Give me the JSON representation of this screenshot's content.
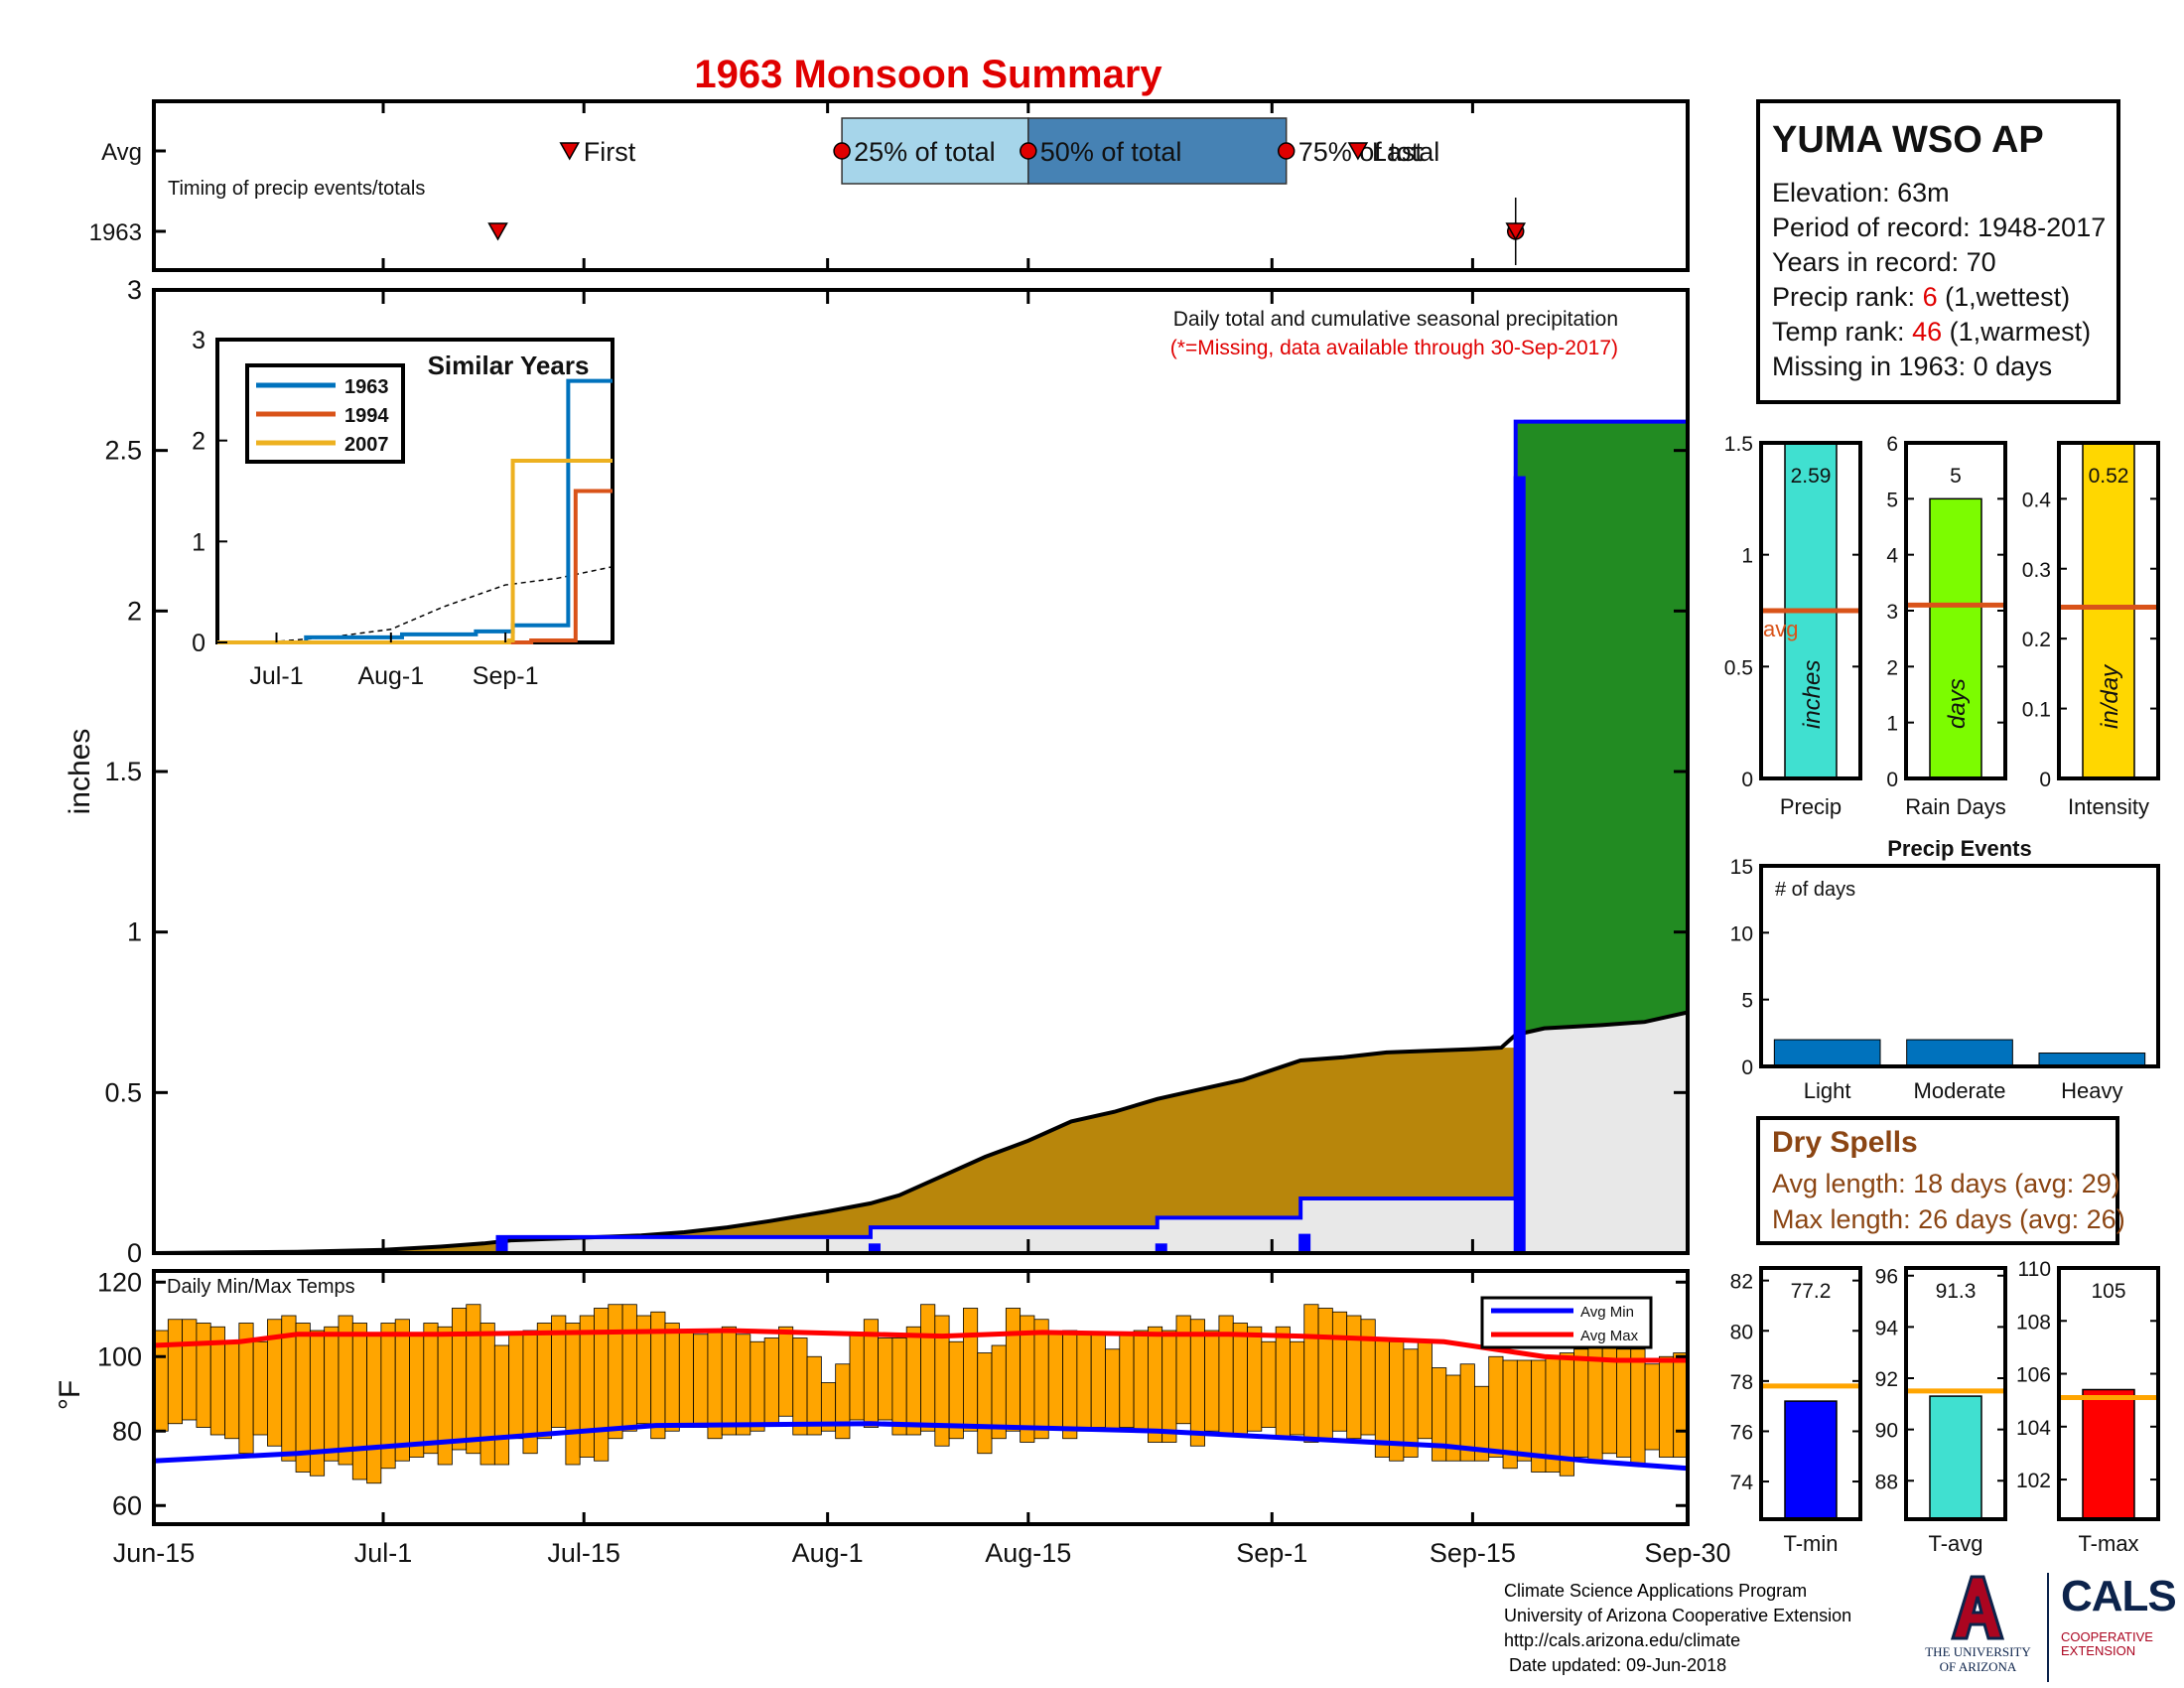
{
  "title": "1963 Monsoon Summary",
  "colors": {
    "title": "#e00000",
    "q_light": "#a6d5ea",
    "q_dark": "#4682b4",
    "marker": "#e00000",
    "precip_fill": "#b8860b",
    "avg_fill": "#e8e8e8",
    "above_fill": "#228b22",
    "cum_line": "#0000ff",
    "temp_bar": "#ffa500",
    "avg_min": "#0000ff",
    "avg_max": "#ff0000",
    "precip_bar": "#40e0d0",
    "raindays_bar": "#7cfc00",
    "intensity_bar": "#ffd700",
    "avg_line": "#d95319",
    "events_bar": "#0072bd",
    "tmin_bar": "#0000ff",
    "tavg_bar": "#40e0d0",
    "tmax_bar": "#ff0000",
    "temp_avg_line": "#ffa500",
    "similar_1963": "#0072bd",
    "similar_1994": "#d95319",
    "similar_2007": "#edb120",
    "dry_text": "#8b4513"
  },
  "station": {
    "name": "YUMA WSO AP",
    "elevation": "Elevation: 63m",
    "period": "Period of record: 1948-2017",
    "years": "Years in record: 70",
    "precip_rank_label": "Precip rank: ",
    "precip_rank_value": "6",
    "precip_rank_note": " (1,wettest)",
    "temp_rank_label": "Temp rank: ",
    "temp_rank_value": "46",
    "temp_rank_note": " (1,warmest)",
    "missing": "Missing in 1963: 0 days"
  },
  "dry_spells": {
    "title": "Dry Spells",
    "avg_length": "Avg length: 18 days (avg: 29)",
    "max_length": "Max length: 26 days (avg: 26)"
  },
  "credits": {
    "line1": "Climate Science Applications Program",
    "line2": "University of Arizona Cooperative Extension",
    "line3": "http://cals.arizona.edu/climate",
    "line4": " Date updated: 09-Jun-2018"
  },
  "logos": {
    "ua_line1": "THE UNIVERSITY",
    "ua_line2": "OF ARIZONA",
    "cals": "CALS",
    "cals_sub1": "COOPERATIVE",
    "cals_sub2": "EXTENSION"
  },
  "chart_data": [
    {
      "id": "timing",
      "type": "scatter",
      "subtitle": "Timing of precip events/totals",
      "y_labels": [
        "Avg",
        "1963"
      ],
      "avg": {
        "first": "2018-07-14",
        "q25": "2018-08-02",
        "q50": "2018-08-15",
        "q75": "2018-09-02",
        "last": "2018-09-07",
        "labels": {
          "first": "First",
          "q25": "25% of total",
          "q50": "50% of total",
          "q75": "75% of total",
          "last": "Last"
        }
      },
      "year": {
        "first": "1963-07-09",
        "q25": "1963-09-18",
        "q50": "1963-09-18",
        "q75": "1963-09-18",
        "last": "1963-09-18"
      }
    },
    {
      "id": "precip",
      "type": "area",
      "note1": "Daily total and cumulative seasonal precipitation",
      "note2": "(*=Missing, data available through 30-Sep-2017)",
      "ylabel": "inches",
      "ylim": [
        0,
        3
      ],
      "yticks": [
        0,
        0.5,
        1,
        1.5,
        2,
        2.5,
        3
      ],
      "xticks": [
        "Jun-15",
        "Jul-1",
        "Jul-15",
        "Aug-1",
        "Aug-15",
        "Sep-1",
        "Sep-15",
        "Sep-30"
      ],
      "xtick_dates": [
        "06-15",
        "07-01",
        "07-15",
        "08-01",
        "08-15",
        "09-01",
        "09-15",
        "09-30"
      ],
      "avg_cumulative": [
        [
          "06-15",
          0
        ],
        [
          "06-20",
          0.002
        ],
        [
          "06-25",
          0.004
        ],
        [
          "07-01",
          0.01
        ],
        [
          "07-05",
          0.02
        ],
        [
          "07-08",
          0.03
        ],
        [
          "07-10",
          0.04
        ],
        [
          "07-13",
          0.045
        ],
        [
          "07-16",
          0.05
        ],
        [
          "07-19",
          0.055
        ],
        [
          "07-22",
          0.065
        ],
        [
          "07-25",
          0.08
        ],
        [
          "07-28",
          0.1
        ],
        [
          "08-01",
          0.13
        ],
        [
          "08-04",
          0.155
        ],
        [
          "08-06",
          0.18
        ],
        [
          "08-09",
          0.24
        ],
        [
          "08-12",
          0.3
        ],
        [
          "08-15",
          0.35
        ],
        [
          "08-18",
          0.41
        ],
        [
          "08-21",
          0.44
        ],
        [
          "08-24",
          0.48
        ],
        [
          "08-27",
          0.51
        ],
        [
          "08-30",
          0.54
        ],
        [
          "09-01",
          0.57
        ],
        [
          "09-03",
          0.6
        ],
        [
          "09-06",
          0.61
        ],
        [
          "09-09",
          0.625
        ],
        [
          "09-12",
          0.63
        ],
        [
          "09-15",
          0.635
        ],
        [
          "09-17",
          0.64
        ],
        [
          "09-18",
          0.68
        ],
        [
          "09-20",
          0.7
        ],
        [
          "09-24",
          0.71
        ],
        [
          "09-27",
          0.72
        ],
        [
          "09-30",
          0.75
        ]
      ],
      "cumulative_1963": [
        [
          "06-15",
          0
        ],
        [
          "07-09",
          0
        ],
        [
          "07-09",
          0.05
        ],
        [
          "08-04",
          0.05
        ],
        [
          "08-04",
          0.08
        ],
        [
          "08-24",
          0.08
        ],
        [
          "08-24",
          0.11
        ],
        [
          "09-03",
          0.11
        ],
        [
          "09-03",
          0.17
        ],
        [
          "09-18",
          0.17
        ],
        [
          "09-18",
          2.59
        ],
        [
          "09-30",
          2.59
        ]
      ],
      "daily_1963": [
        [
          "07-09",
          0.05
        ],
        [
          "08-04",
          0.03
        ],
        [
          "08-24",
          0.03
        ],
        [
          "09-03",
          0.06
        ],
        [
          "09-18",
          2.42
        ]
      ],
      "inset": {
        "title": "Similar Years",
        "ylim": [
          0,
          3
        ],
        "yticks": [
          0,
          1,
          2,
          3
        ],
        "xticks": [
          "Jul-1",
          "Aug-1",
          "Sep-1"
        ],
        "xtick_dates": [
          "07-01",
          "08-01",
          "09-01"
        ],
        "series": [
          {
            "name": "1963",
            "points": [
              [
                "06-15",
                0
              ],
              [
                "07-09",
                0.05
              ],
              [
                "08-04",
                0.08
              ],
              [
                "08-24",
                0.11
              ],
              [
                "09-03",
                0.17
              ],
              [
                "09-18",
                2.59
              ],
              [
                "09-30",
                2.59
              ]
            ]
          },
          {
            "name": "1994",
            "points": [
              [
                "06-15",
                0
              ],
              [
                "09-08",
                0.02
              ],
              [
                "09-20",
                1.5
              ],
              [
                "09-30",
                1.5
              ]
            ]
          },
          {
            "name": "2007",
            "points": [
              [
                "06-15",
                0
              ],
              [
                "09-02",
                0.02
              ],
              [
                "09-03",
                1.8
              ],
              [
                "09-30",
                1.8
              ]
            ]
          }
        ],
        "avg": [
          [
            "06-15",
            0
          ],
          [
            "07-01",
            0.01
          ],
          [
            "07-15",
            0.05
          ],
          [
            "08-01",
            0.13
          ],
          [
            "08-15",
            0.35
          ],
          [
            "09-01",
            0.57
          ],
          [
            "09-15",
            0.635
          ],
          [
            "09-30",
            0.75
          ]
        ]
      }
    },
    {
      "id": "temps",
      "type": "bar",
      "label": "Daily Min/Max Temps",
      "ylabel": "°F",
      "ylim": [
        55,
        123
      ],
      "yticks": [
        60,
        80,
        100,
        120
      ],
      "legend": [
        "Avg Min",
        "Avg Max"
      ],
      "start": "06-15",
      "tmax": [
        107,
        110,
        110,
        109,
        108,
        104,
        109,
        104,
        110,
        111,
        109,
        107,
        108,
        111,
        109,
        106,
        109,
        110,
        106,
        109,
        108,
        113,
        114,
        109,
        103,
        106,
        107,
        109,
        111,
        109,
        111,
        113,
        114,
        114,
        111,
        112,
        109,
        107,
        106,
        107,
        108,
        106,
        104,
        105,
        108,
        105,
        100,
        93,
        98,
        106,
        110,
        105,
        105,
        108,
        114,
        111,
        104,
        113,
        101,
        103,
        113,
        111,
        110,
        106,
        107,
        106,
        106,
        102,
        106,
        107,
        108,
        107,
        111,
        110,
        107,
        111,
        109,
        108,
        104,
        108,
        104,
        114,
        113,
        112,
        111,
        110,
        105,
        104,
        102,
        104,
        97,
        95,
        98,
        92,
        100,
        99,
        99,
        99,
        100,
        101,
        102,
        104,
        104,
        102,
        102,
        98,
        100,
        101
      ],
      "tmin": [
        80,
        82,
        83,
        81,
        79,
        78,
        74,
        79,
        76,
        72,
        69,
        68,
        72,
        71,
        67,
        66,
        70,
        72,
        73,
        74,
        71,
        75,
        74,
        71,
        71,
        78,
        74,
        78,
        81,
        71,
        73,
        72,
        78,
        80,
        82,
        78,
        80,
        81,
        81,
        78,
        79,
        79,
        80,
        82,
        84,
        79,
        79,
        80,
        78,
        83,
        81,
        83,
        79,
        79,
        80,
        76,
        78,
        80,
        74,
        78,
        80,
        77,
        78,
        81,
        78,
        80,
        81,
        80,
        81,
        80,
        77,
        77,
        82,
        76,
        80,
        79,
        79,
        80,
        81,
        78,
        79,
        77,
        78,
        80,
        78,
        79,
        73,
        72,
        73,
        78,
        72,
        72,
        72,
        72,
        73,
        70,
        72,
        69,
        69,
        68,
        73,
        72,
        74,
        73,
        71,
        75,
        73,
        73
      ],
      "avg_max": [
        [
          0,
          103
        ],
        [
          6,
          104
        ],
        [
          10,
          106
        ],
        [
          20,
          106
        ],
        [
          30,
          106.5
        ],
        [
          40,
          107
        ],
        [
          55,
          105.5
        ],
        [
          62,
          106.5
        ],
        [
          70,
          106
        ],
        [
          75,
          106
        ],
        [
          80,
          105.5
        ],
        [
          90,
          104
        ],
        [
          97,
          100
        ],
        [
          102,
          99
        ],
        [
          107,
          99
        ]
      ],
      "avg_min": [
        [
          0,
          72
        ],
        [
          10,
          74
        ],
        [
          20,
          77
        ],
        [
          30,
          80
        ],
        [
          35,
          81.5
        ],
        [
          50,
          82
        ],
        [
          60,
          81
        ],
        [
          70,
          80
        ],
        [
          80,
          78
        ],
        [
          90,
          76
        ],
        [
          95,
          74
        ],
        [
          100,
          72
        ],
        [
          107,
          70
        ]
      ]
    },
    {
      "id": "precip_bar",
      "type": "bar",
      "xlabel": "Precip",
      "ylim": [
        0,
        1.5
      ],
      "yticks": [
        0,
        0.5,
        1,
        1.5
      ],
      "value": 2.59,
      "value_label": "2.59",
      "avg": 0.75,
      "avg_label": "avg",
      "unit": "inches"
    },
    {
      "id": "raindays_bar",
      "type": "bar",
      "xlabel": "Rain Days",
      "ylim": [
        0,
        6
      ],
      "yticks": [
        0,
        1,
        2,
        3,
        4,
        5,
        6
      ],
      "value": 5,
      "value_label": "5",
      "avg": 3.1,
      "unit": "days"
    },
    {
      "id": "intensity_bar",
      "type": "bar",
      "xlabel": "Intensity",
      "ylim": [
        0,
        0.48
      ],
      "yticks": [
        0,
        0.1,
        0.2,
        0.3,
        0.4
      ],
      "value": 0.52,
      "value_label": "0.52",
      "avg": 0.245,
      "unit": "in/day"
    },
    {
      "id": "events",
      "type": "bar",
      "title": "Precip Events",
      "ylabel": "# of days",
      "ylim": [
        0,
        15
      ],
      "yticks": [
        0,
        5,
        10,
        15
      ],
      "categories": [
        "Light",
        "Moderate",
        "Heavy"
      ],
      "values": [
        2,
        2,
        1
      ]
    },
    {
      "id": "tmin_bar",
      "type": "bar",
      "xlabel": "T-min",
      "ylim": [
        72.5,
        82.5
      ],
      "yticks": [
        74,
        76,
        78,
        80,
        82
      ],
      "value": 77.2,
      "value_label": "77.2",
      "avg": 77.8
    },
    {
      "id": "tavg_bar",
      "type": "bar",
      "xlabel": "T-avg",
      "ylim": [
        86.5,
        96.3
      ],
      "yticks": [
        88,
        90,
        92,
        94,
        96
      ],
      "value": 91.3,
      "value_label": "91.3",
      "avg": 91.5
    },
    {
      "id": "tmax_bar",
      "type": "bar",
      "xlabel": "T-max",
      "ylim": [
        100.5,
        110
      ],
      "yticks": [
        102,
        104,
        106,
        108,
        110
      ],
      "value": 105.4,
      "value_label": "105",
      "avg": 105.1
    }
  ]
}
